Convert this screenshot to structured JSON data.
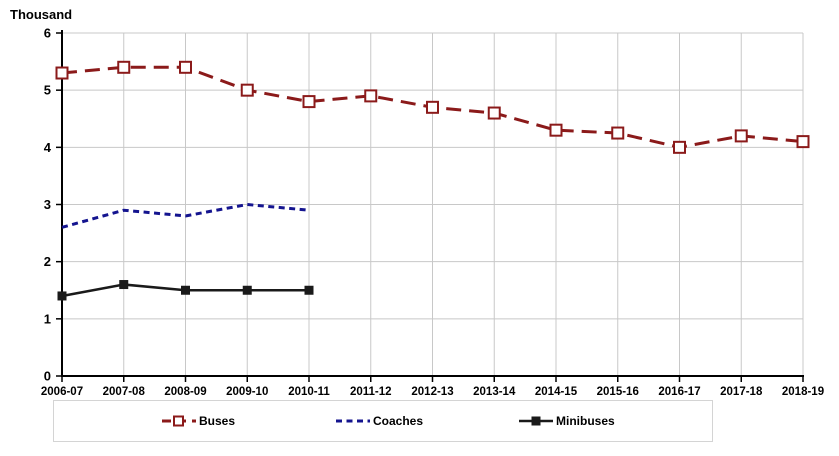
{
  "chart_data": {
    "type": "line",
    "title": "",
    "unit_label": "Thousand",
    "xlabel": "",
    "ylabel": "Thousand",
    "ylim": [
      0,
      6
    ],
    "y_ticks": [
      0,
      1,
      2,
      3,
      4,
      5,
      6
    ],
    "grid": true,
    "legend_position": "bottom",
    "categories": [
      "2006-07",
      "2007-08",
      "2008-09",
      "2009-10",
      "2010-11",
      "2011-12",
      "2012-13",
      "2013-14",
      "2014-15",
      "2015-16",
      "2016-17",
      "2017-18",
      "2018-19"
    ],
    "series": [
      {
        "name": "Buses",
        "color": "#8b1a1a",
        "line_style": "long-dash",
        "marker": "open-square",
        "values": [
          5.3,
          5.4,
          5.4,
          5.0,
          4.8,
          4.9,
          4.7,
          4.6,
          4.3,
          4.25,
          4.0,
          4.2,
          4.1
        ]
      },
      {
        "name": "Coaches",
        "color": "#14148f",
        "line_style": "short-dash",
        "marker": "none",
        "values": [
          2.6,
          2.9,
          2.8,
          3.0,
          2.9
        ]
      },
      {
        "name": "Minibuses",
        "color": "#1a1a1a",
        "line_style": "solid",
        "marker": "filled-square",
        "values": [
          1.4,
          1.6,
          1.5,
          1.5,
          1.5
        ]
      }
    ],
    "axis_color": "#000000",
    "gridline_color": "#c8c8c8",
    "tick_label_color": "#000000"
  }
}
